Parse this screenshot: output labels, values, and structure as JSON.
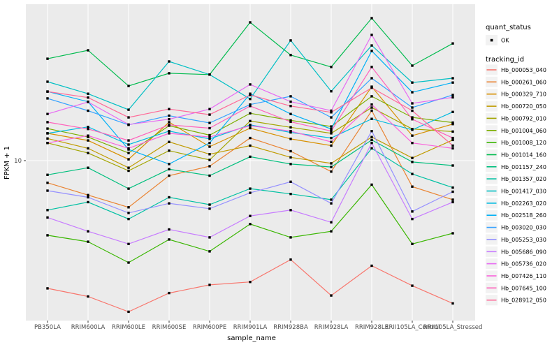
{
  "chart_data": {
    "type": "line",
    "title": "",
    "xlabel": "sample_name",
    "ylabel": "FPKM + 1",
    "y_scale": "log10",
    "ylim": [
      1,
      100
    ],
    "y_tick_labels": [
      "10"
    ],
    "y_tick_values": [
      10
    ],
    "grid": "ggplot-grey-panel-white-gridlines",
    "panel_color": "#EBEBEB",
    "gridline_color": "#FFFFFF",
    "marker": "black-square",
    "marker_color": "#000000",
    "legend_position": "right",
    "legend": {
      "quant_status": {
        "title": "quant_status",
        "items": [
          {
            "label": "OK",
            "marker": "black-point"
          }
        ]
      },
      "tracking_id_title": "tracking_id"
    },
    "categories": [
      "PB350LA",
      "RRIM600LA",
      "RRIM600LE",
      "RRIM600SE",
      "RRIM600PE",
      "RRIM901LA",
      "RRIM928BA",
      "RRIM928LA",
      "RRIM928LE",
      "RRII105LA_Control",
      "RRII105LA_Stressed"
    ],
    "series": [
      {
        "tracking_id": "Hb_000053_040",
        "quant_status": "OK",
        "color": "#F8766D",
        "values": [
          1.5,
          1.33,
          1.06,
          1.4,
          1.58,
          1.65,
          2.3,
          1.35,
          2.1,
          1.56,
          1.2
        ]
      },
      {
        "tracking_id": "Hb_000261_060",
        "quant_status": "OK",
        "color": "#EA8331",
        "values": [
          7.2,
          6.0,
          5.0,
          8.0,
          9.2,
          14.0,
          11.5,
          8.5,
          21.0,
          6.8,
          5.6
        ]
      },
      {
        "tracking_id": "Hb_000329_710",
        "quant_status": "OK",
        "color": "#D89000",
        "values": [
          15.0,
          13.5,
          10.2,
          17.7,
          12.3,
          16.2,
          13.8,
          12.5,
          30.0,
          14.5,
          17.2
        ]
      },
      {
        "tracking_id": "Hb_000720_050",
        "quant_status": "OK",
        "color": "#C09B00",
        "values": [
          13.9,
          12.0,
          9.0,
          13.2,
          11.0,
          12.5,
          10.5,
          9.6,
          14.2,
          10.4,
          13.6
        ]
      },
      {
        "tracking_id": "Hb_000792_010",
        "quant_status": "OK",
        "color": "#A3A500",
        "values": [
          13.0,
          11.2,
          8.6,
          11.6,
          10.1,
          18.0,
          16.4,
          15.0,
          22.0,
          16.0,
          15.4
        ]
      },
      {
        "tracking_id": "Hb_001004_060",
        "quant_status": "OK",
        "color": "#7CAE00",
        "values": [
          16.1,
          14.2,
          11.2,
          16.8,
          14.6,
          20.2,
          18.2,
          16.6,
          26.0,
          19.0,
          17.6
        ]
      },
      {
        "tracking_id": "Hb_001008_120",
        "quant_status": "OK",
        "color": "#39B600",
        "values": [
          3.3,
          3.0,
          2.2,
          3.1,
          2.6,
          3.9,
          3.2,
          3.5,
          7.0,
          2.9,
          3.4
        ]
      },
      {
        "tracking_id": "Hb_001014_160",
        "quant_status": "OK",
        "color": "#00BB4E",
        "values": [
          45.4,
          51.5,
          30.3,
          36.6,
          35.9,
          78.0,
          48.0,
          40.2,
          83.0,
          41.0,
          57.0
        ]
      },
      {
        "tracking_id": "Hb_001157_240",
        "quant_status": "OK",
        "color": "#00BF7D",
        "values": [
          8.1,
          9.0,
          6.6,
          8.8,
          8.0,
          10.6,
          9.5,
          9.1,
          13.6,
          9.8,
          9.3
        ]
      },
      {
        "tracking_id": "Hb_001357_020",
        "quant_status": "OK",
        "color": "#00C1A3",
        "values": [
          4.8,
          5.4,
          4.2,
          5.8,
          5.2,
          6.6,
          6.1,
          5.6,
          12.0,
          8.2,
          6.7
        ]
      },
      {
        "tracking_id": "Hb_001417_030",
        "quant_status": "OK",
        "color": "#00BFC4",
        "values": [
          32.3,
          27.0,
          21.3,
          43.6,
          35.9,
          25.0,
          59.6,
          28.0,
          55.3,
          31.9,
          34.0
        ]
      },
      {
        "tracking_id": "Hb_002263_020",
        "quant_status": "OK",
        "color": "#00BAE0",
        "values": [
          15.0,
          16.5,
          12.7,
          15.5,
          13.8,
          17.0,
          15.2,
          14.0,
          18.6,
          15.8,
          20.6
        ]
      },
      {
        "tracking_id": "Hb_002518_260",
        "quant_status": "OK",
        "color": "#00B0F6",
        "values": [
          27.9,
          24.0,
          11.8,
          9.5,
          13.0,
          27.0,
          20.0,
          16.0,
          51.0,
          27.6,
          31.9
        ]
      },
      {
        "tracking_id": "Hb_003020_030",
        "quant_status": "OK",
        "color": "#35A2FF",
        "values": [
          25.2,
          21.0,
          17.0,
          19.5,
          17.5,
          23.0,
          26.0,
          19.0,
          34.0,
          22.0,
          26.5
        ]
      },
      {
        "tracking_id": "Hb_005253_030",
        "quant_status": "OK",
        "color": "#9590FF",
        "values": [
          6.4,
          5.8,
          4.6,
          5.3,
          4.9,
          6.2,
          7.3,
          5.3,
          15.5,
          4.7,
          6.3
        ]
      },
      {
        "tracking_id": "Hb_005686_090",
        "quant_status": "OK",
        "color": "#C77CFF",
        "values": [
          4.3,
          3.5,
          2.9,
          3.6,
          3.2,
          4.4,
          4.8,
          4.0,
          13.0,
          4.2,
          5.4
        ]
      },
      {
        "tracking_id": "Hb_005736_020",
        "quant_status": "OK",
        "color": "#E76BF3",
        "values": [
          20.0,
          23.9,
          17.1,
          18.5,
          21.5,
          31.0,
          24.0,
          21.0,
          64.7,
          23.4,
          25.6
        ]
      },
      {
        "tracking_id": "Hb_007426_110",
        "quant_status": "OK",
        "color": "#FA62DB",
        "values": [
          13.0,
          14.5,
          12.0,
          15.0,
          14.2,
          16.8,
          15.5,
          13.2,
          23.0,
          13.0,
          12.0
        ]
      },
      {
        "tracking_id": "Hb_007645_100",
        "quant_status": "OK",
        "color": "#FF62BC",
        "values": [
          17.7,
          16.0,
          13.5,
          17.0,
          16.2,
          22.5,
          17.8,
          15.5,
          40.2,
          18.5,
          14.0
        ]
      },
      {
        "tracking_id": "Hb_028912_050",
        "quant_status": "OK",
        "color": "#FF6A98",
        "values": [
          27.9,
          25.5,
          19.0,
          21.5,
          19.8,
          26.5,
          22.5,
          20.5,
          29.5,
          21.0,
          12.5
        ]
      }
    ]
  }
}
